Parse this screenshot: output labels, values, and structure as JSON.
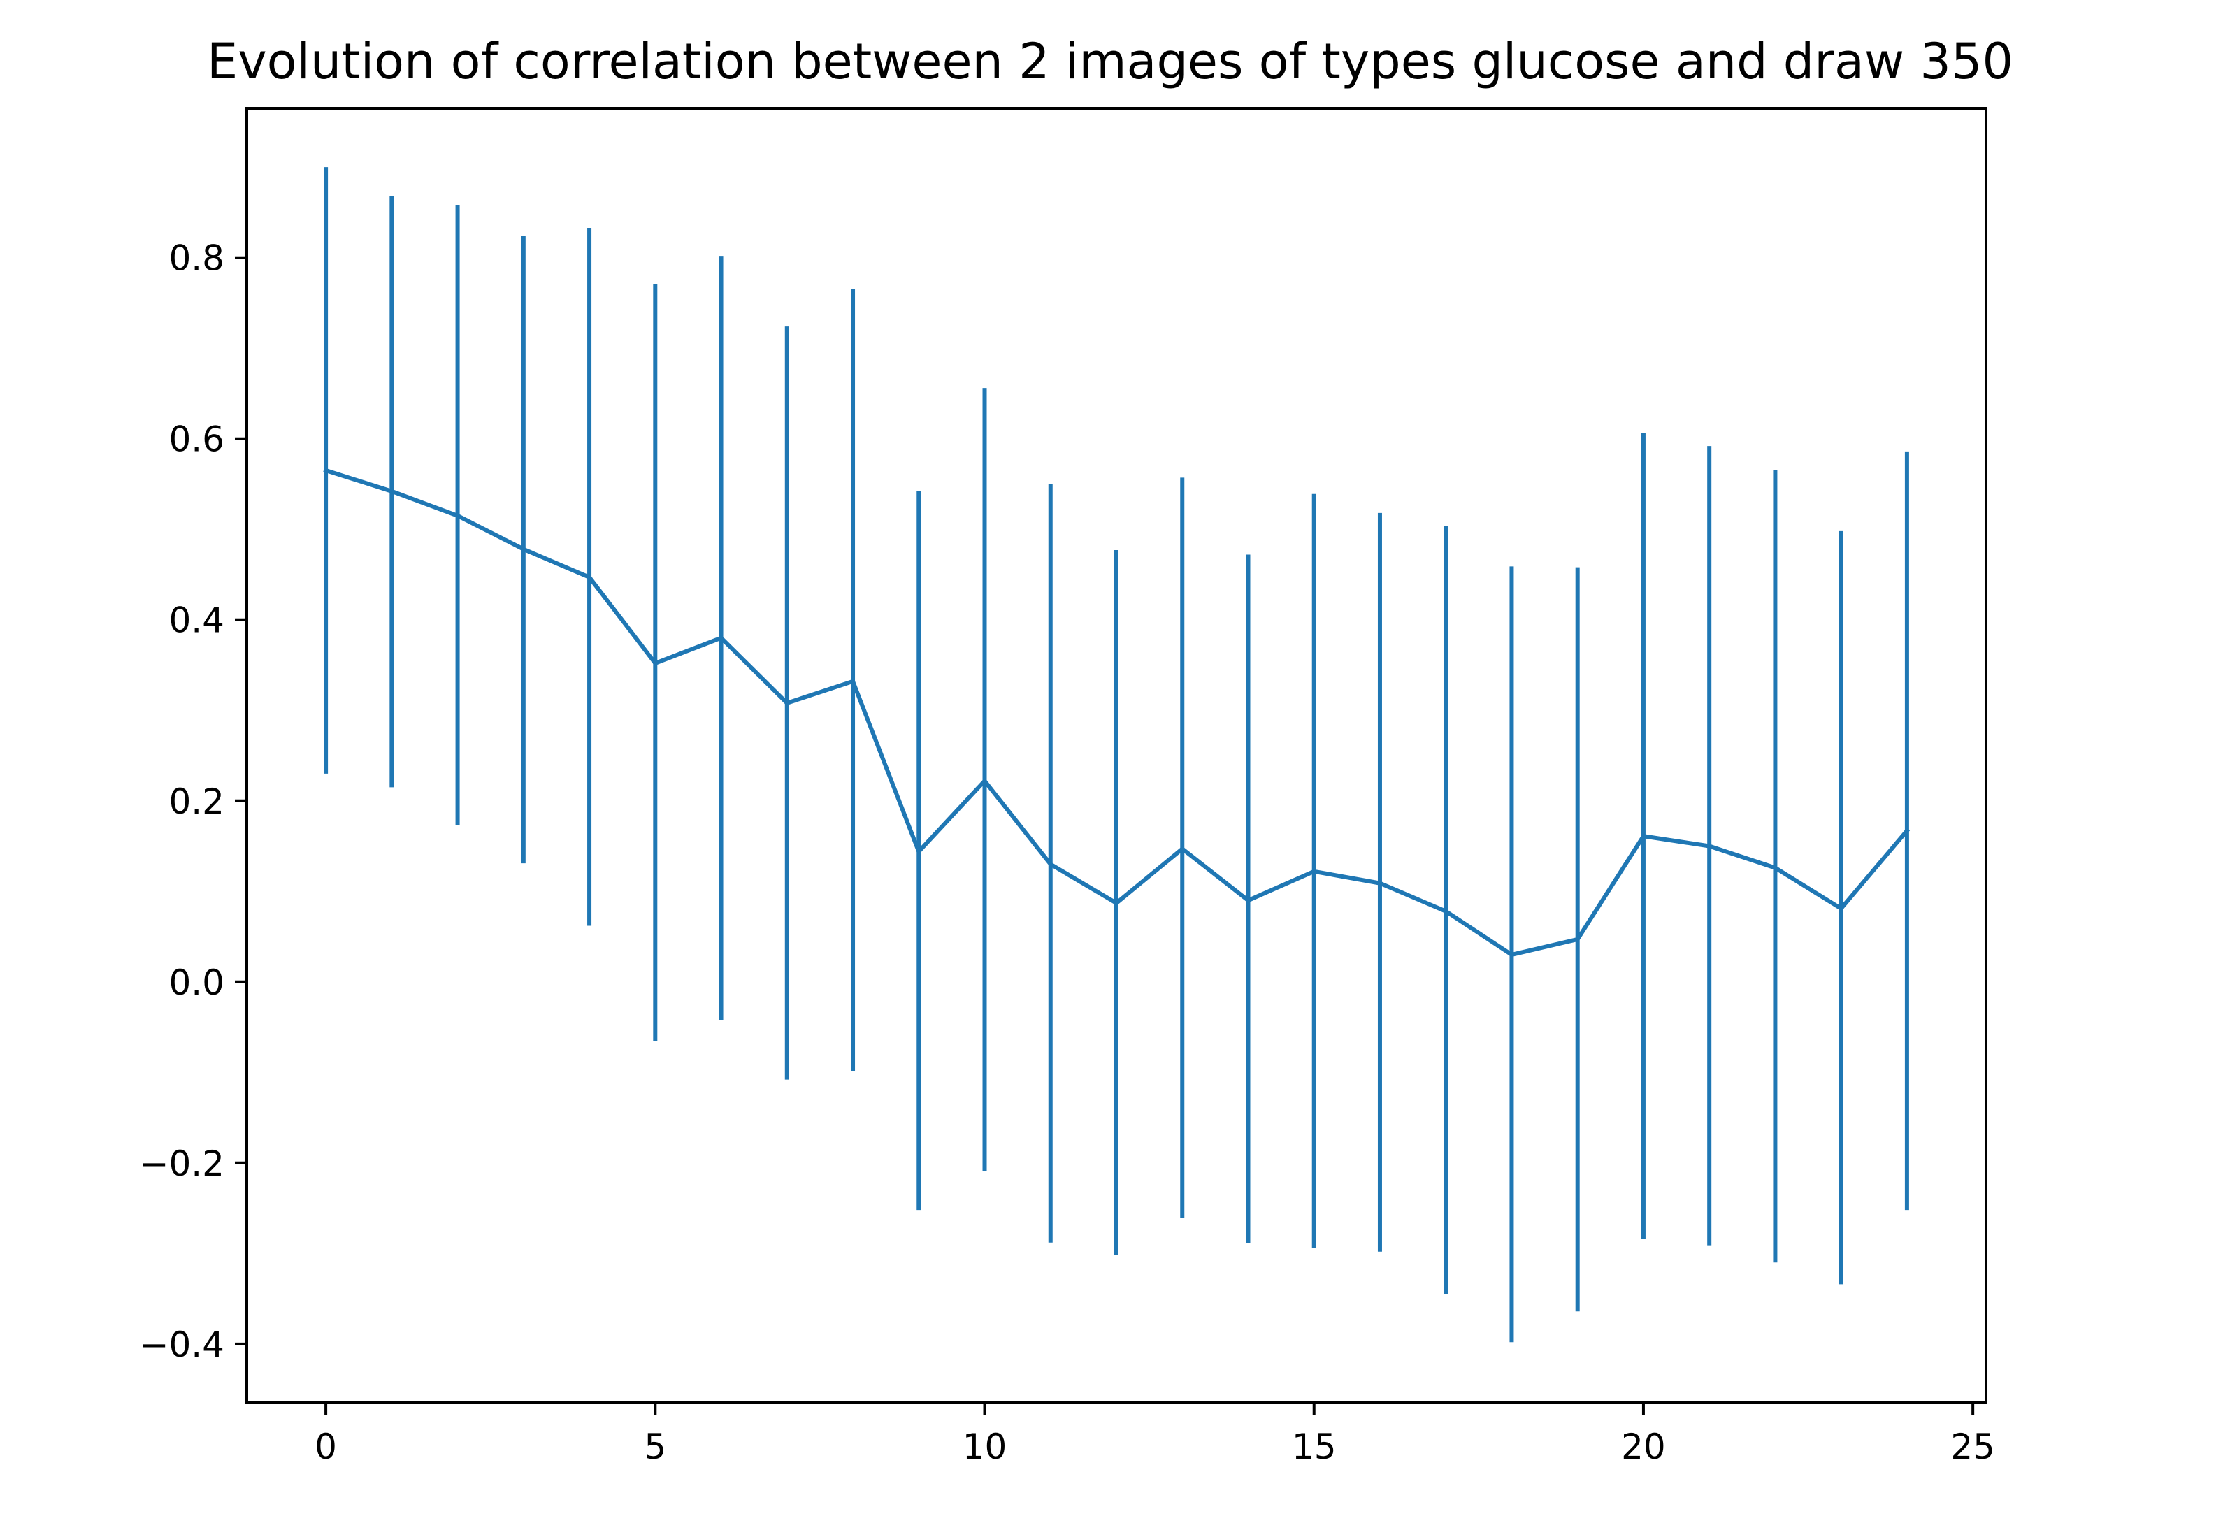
{
  "chart_data": {
    "type": "line",
    "title": "Evolution of correlation between 2 images of types glucose and draw 350",
    "xlabel": "",
    "ylabel": "",
    "xlim": [
      -1.2,
      25.2
    ],
    "ylim": [
      -0.465,
      0.965
    ],
    "xticks": [
      0,
      5,
      10,
      15,
      20,
      25
    ],
    "xtick_labels": [
      "0",
      "5",
      "10",
      "15",
      "20",
      "25"
    ],
    "yticks": [
      -0.4,
      -0.2,
      0.0,
      0.2,
      0.4,
      0.6,
      0.8
    ],
    "ytick_labels": [
      "−0.4",
      "−0.2",
      "0.0",
      "0.2",
      "0.4",
      "0.6",
      "0.8"
    ],
    "grid": false,
    "legend": "none",
    "series": [
      {
        "color": "#1f77b4",
        "x": [
          0,
          1,
          2,
          3,
          4,
          5,
          6,
          7,
          8,
          9,
          10,
          11,
          12,
          13,
          14,
          15,
          16,
          17,
          18,
          19,
          20,
          21,
          22,
          23,
          24
        ],
        "y": [
          0.565,
          0.542,
          0.515,
          0.478,
          0.447,
          0.352,
          0.38,
          0.308,
          0.332,
          0.144,
          0.222,
          0.13,
          0.087,
          0.147,
          0.09,
          0.122,
          0.109,
          0.078,
          0.03,
          0.047,
          0.161,
          0.15,
          0.126,
          0.081,
          0.167
        ],
        "error_low": [
          0.23,
          0.215,
          0.173,
          0.131,
          0.062,
          -0.065,
          -0.042,
          -0.108,
          -0.099,
          -0.252,
          -0.209,
          -0.288,
          -0.302,
          -0.261,
          -0.289,
          -0.294,
          -0.298,
          -0.345,
          -0.398,
          -0.364,
          -0.284,
          -0.291,
          -0.31,
          -0.334,
          -0.252
        ],
        "error_high": [
          0.9,
          0.868,
          0.858,
          0.824,
          0.833,
          0.771,
          0.802,
          0.724,
          0.765,
          0.542,
          0.656,
          0.55,
          0.477,
          0.557,
          0.472,
          0.539,
          0.518,
          0.504,
          0.459,
          0.458,
          0.606,
          0.592,
          0.565,
          0.498,
          0.586
        ]
      }
    ]
  }
}
